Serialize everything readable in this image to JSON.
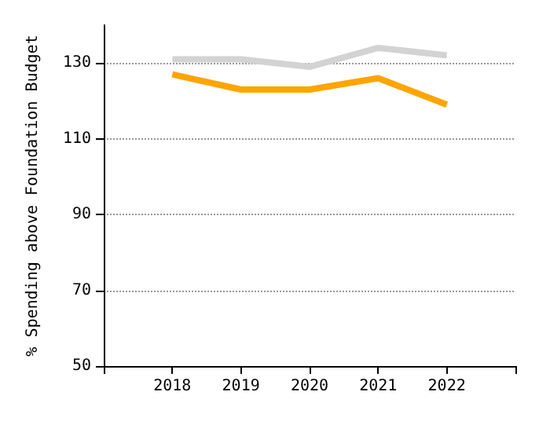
{
  "chart_data": {
    "type": "line",
    "ylabel": "% Spending above Foundation Budget",
    "x": [
      2018,
      2019,
      2020,
      2021,
      2022
    ],
    "xlim": [
      2017,
      2023
    ],
    "xticks": [
      2018,
      2019,
      2020,
      2021,
      2022
    ],
    "ylim": [
      50,
      140
    ],
    "yticks": [
      50,
      70,
      90,
      110,
      130
    ],
    "grid": "y",
    "marker": "none",
    "line_style": "solid",
    "series": [
      {
        "color": "#d3d3d3",
        "values": [
          131,
          131,
          129,
          134,
          132
        ]
      },
      {
        "color": "#ffa500",
        "values": [
          127,
          123,
          123,
          126,
          119
        ]
      }
    ]
  }
}
